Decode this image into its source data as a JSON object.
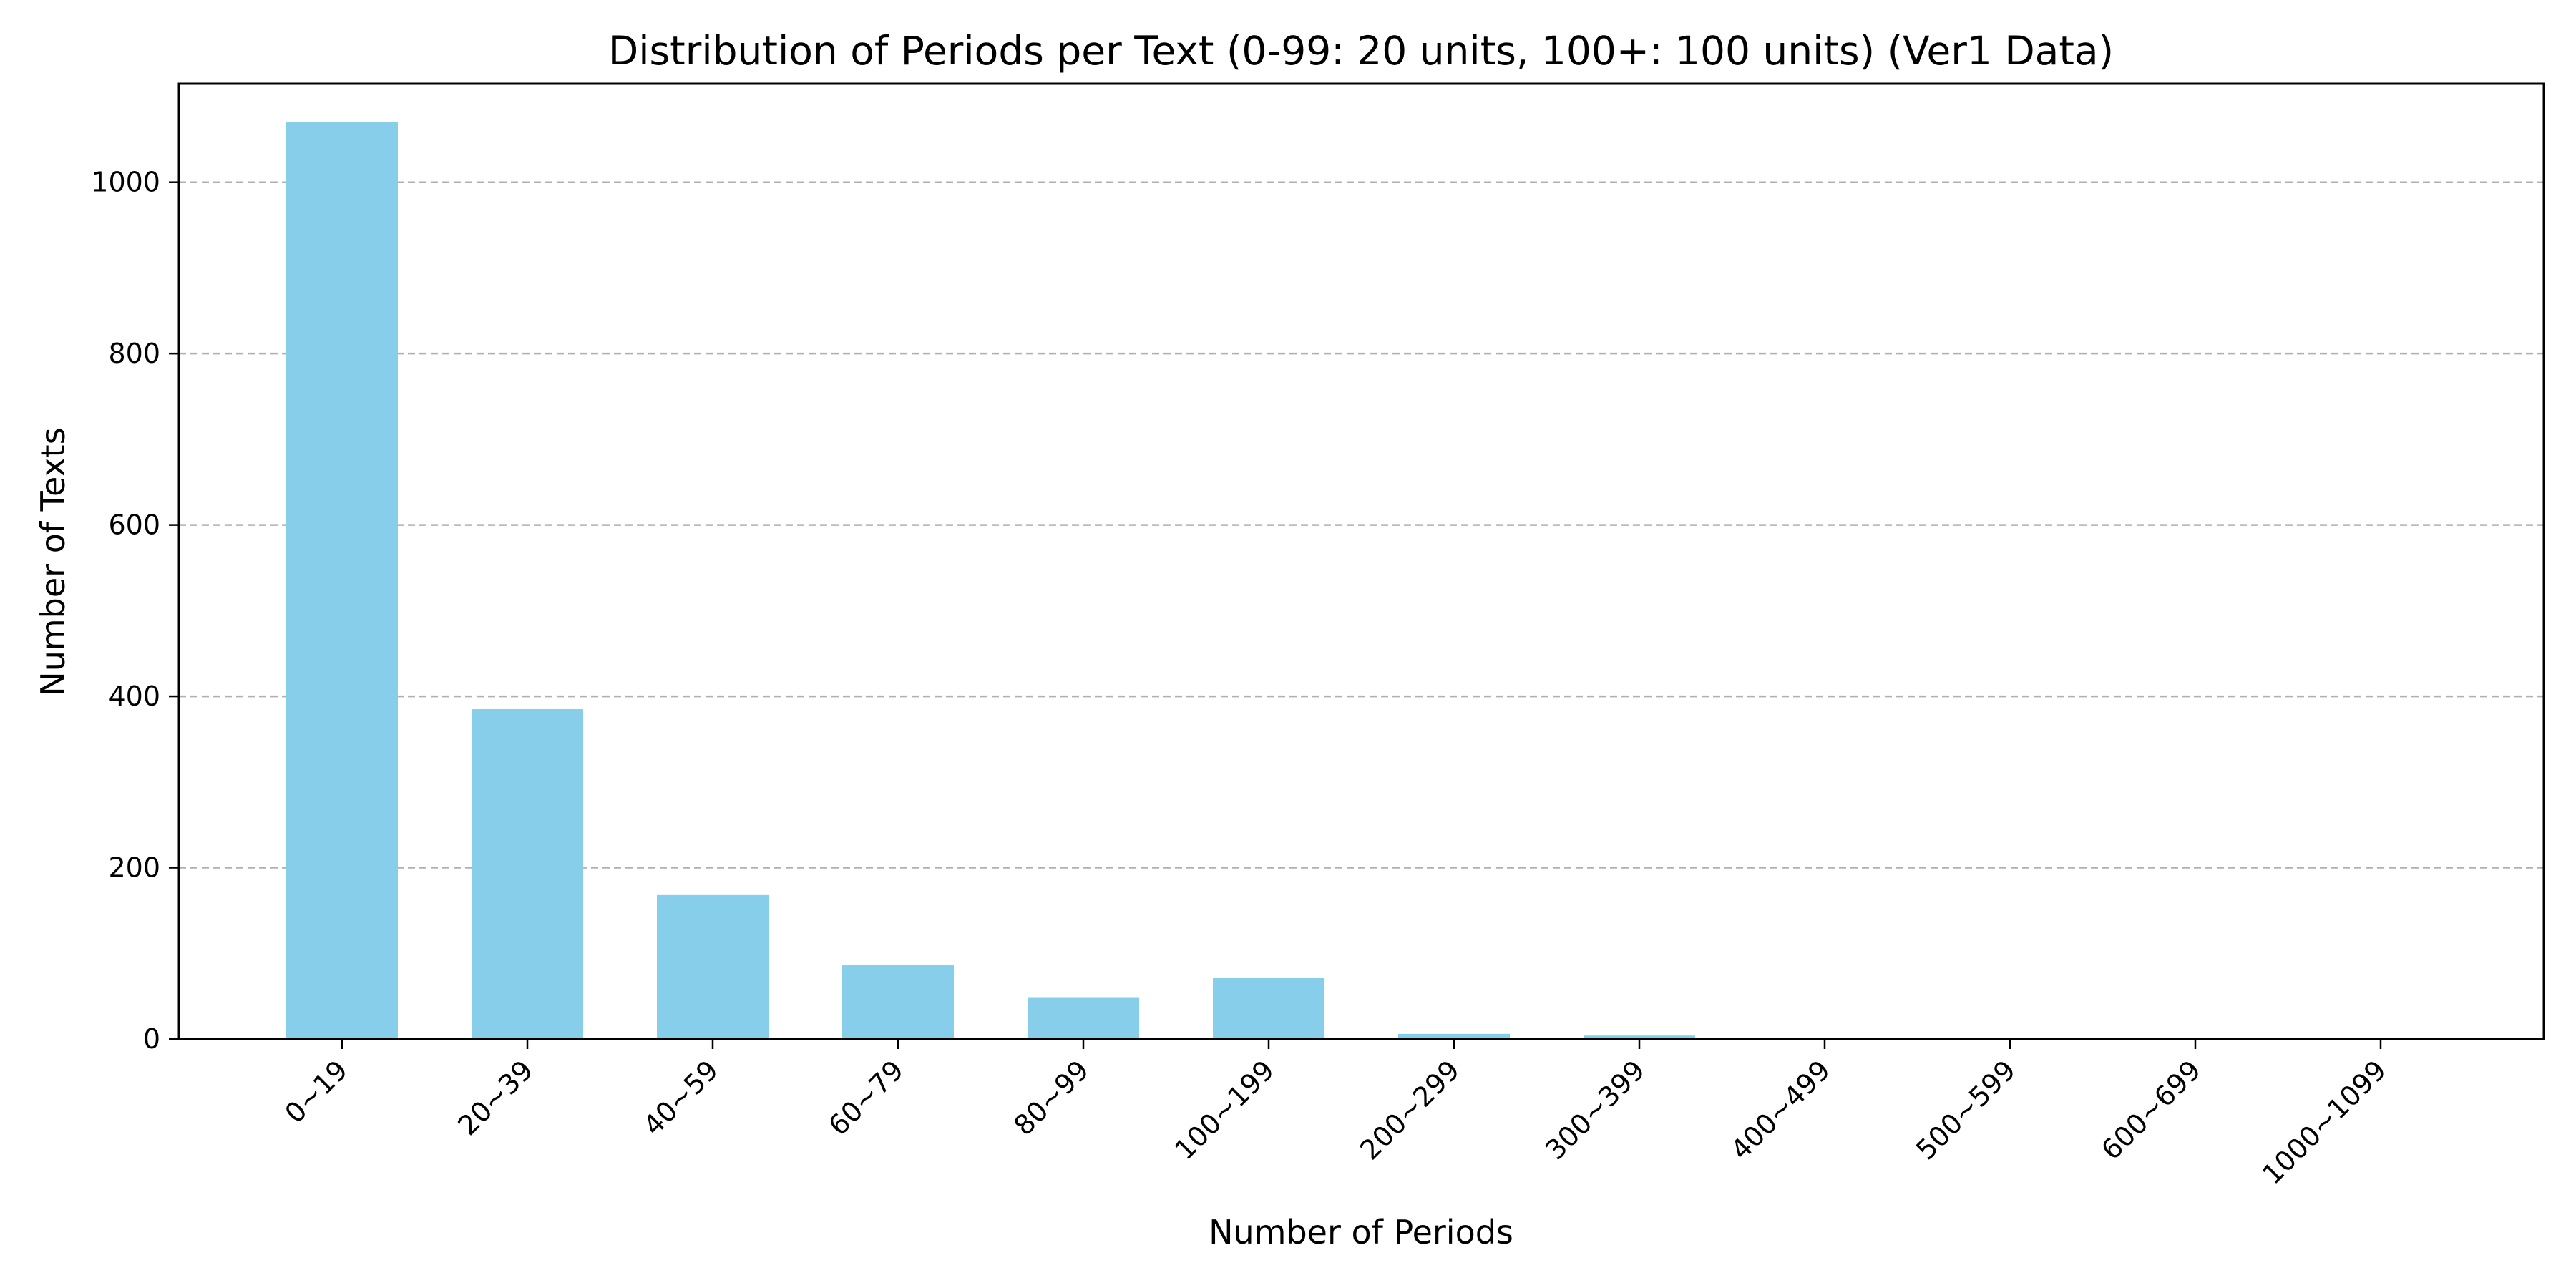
{
  "chart_data": {
    "type": "bar",
    "title": "Distribution of Periods per Text (0-99: 20 units, 100+: 100 units) (Ver1 Data)",
    "xlabel": "Number of Periods",
    "ylabel": "Number of Texts",
    "categories": [
      "0~19",
      "20~39",
      "40~59",
      "60~79",
      "80~99",
      "100~199",
      "200~299",
      "300~399",
      "400~499",
      "500~599",
      "600~699",
      "1000~1099"
    ],
    "values": [
      1070,
      385,
      168,
      86,
      48,
      71,
      6,
      4,
      1,
      1,
      0,
      0
    ],
    "ylim": [
      0,
      1115
    ],
    "yticks": [
      0,
      200,
      400,
      600,
      800,
      1000
    ],
    "grid": "y-dashed",
    "bar_color": "#87ceeb"
  }
}
